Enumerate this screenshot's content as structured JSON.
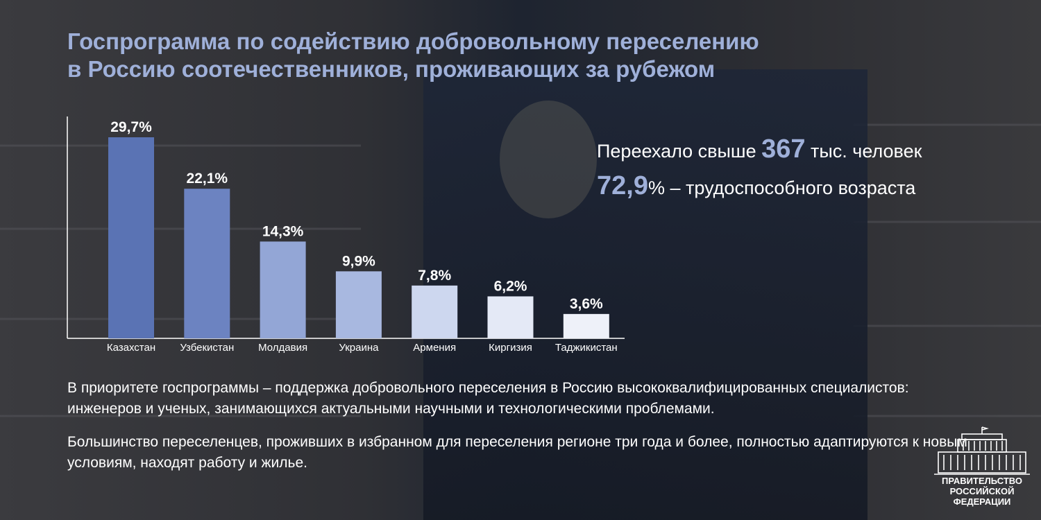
{
  "header": {
    "title_line1": "Госпрограмма по содействию добровольному переселению",
    "title_line2": "в Россию соотечественников, проживающих за рубежом"
  },
  "stats": {
    "line1_prefix": "Переехало свыше ",
    "line1_value": "367",
    "line1_suffix": " тыс. человек",
    "line2_value": "72,9",
    "line2_suffix": "% – трудоспособного возраста"
  },
  "paragraphs": {
    "p1": "В приоритете госпрограммы – поддержка добровольного переселения в Россию высококвалифицированных специалистов: инженеров и ученых, занимающихся актуальными научными и технологическими проблемами.",
    "p2": "Большинство переселенцев, проживших в избранном для переселения регионе три года и более, полностью адаптируются к новым условиям, находят работу и жилье."
  },
  "logo": {
    "line1": "ПРАВИТЕЛЬСТВО",
    "line2": "РОССИЙСКОЙ",
    "line3": "ФЕДЕРАЦИИ",
    "icon": "government-building-icon"
  },
  "colors": {
    "title": "#9fb0d9",
    "accent": "#9fb0d9",
    "background": "#2b2c31"
  },
  "chart_data": {
    "type": "bar",
    "categories": [
      "Казахстан",
      "Узбекистан",
      "Молдавия",
      "Украина",
      "Армения",
      "Киргизия",
      "Таджикистан"
    ],
    "values": [
      29.7,
      22.1,
      14.3,
      9.9,
      7.8,
      6.2,
      3.6
    ],
    "value_labels": [
      "29,7%",
      "22,1%",
      "14,3%",
      "9,9%",
      "7,8%",
      "6,2%",
      "3,6%"
    ],
    "bar_colors": [
      "#5a73b4",
      "#6c83c1",
      "#93a6d6",
      "#a8b8e0",
      "#cdd7ef",
      "#e4e9f6",
      "#eef1f9"
    ],
    "title": "",
    "xlabel": "",
    "ylabel": "",
    "grid": false
  }
}
